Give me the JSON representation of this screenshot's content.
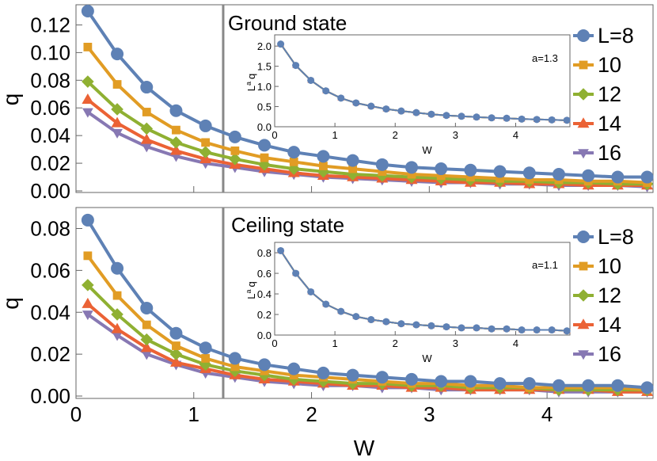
{
  "chart_data": [
    {
      "type": "line",
      "title": "Ground state",
      "xlabel": "",
      "ylabel": "q",
      "xlim": [
        0,
        4.9
      ],
      "ylim": [
        0,
        0.13
      ],
      "yticks": [
        {
          "v": 0.0,
          "label": "0.00"
        },
        {
          "v": 0.02,
          "label": "0.02"
        },
        {
          "v": 0.04,
          "label": "0.04"
        },
        {
          "v": 0.06,
          "label": "0.06"
        },
        {
          "v": 0.08,
          "label": "0.08"
        },
        {
          "v": 0.1,
          "label": "0.10"
        },
        {
          "v": 0.12,
          "label": "0.12"
        }
      ],
      "vline_x": 1.25,
      "x": [
        0.1,
        0.35,
        0.6,
        0.85,
        1.1,
        1.35,
        1.6,
        1.85,
        2.1,
        2.35,
        2.6,
        2.85,
        3.1,
        3.35,
        3.6,
        3.85,
        4.1,
        4.35,
        4.6,
        4.85
      ],
      "series": [
        {
          "name": "L=8",
          "color": "#5E81B5",
          "marker": "circle",
          "values": [
            0.13,
            0.099,
            0.075,
            0.058,
            0.047,
            0.039,
            0.033,
            0.028,
            0.025,
            0.022,
            0.019,
            0.017,
            0.016,
            0.015,
            0.014,
            0.013,
            0.012,
            0.011,
            0.01,
            0.01
          ]
        },
        {
          "name": "10",
          "color": "#E19C24",
          "marker": "square",
          "values": [
            0.104,
            0.077,
            0.057,
            0.044,
            0.035,
            0.029,
            0.024,
            0.021,
            0.018,
            0.016,
            0.014,
            0.012,
            0.011,
            0.01,
            0.009,
            0.008,
            0.008,
            0.007,
            0.007,
            0.006
          ]
        },
        {
          "name": "12",
          "color": "#8FB032",
          "marker": "diamond",
          "values": [
            0.079,
            0.059,
            0.045,
            0.035,
            0.028,
            0.023,
            0.019,
            0.016,
            0.014,
            0.012,
            0.011,
            0.01,
            0.009,
            0.008,
            0.007,
            0.007,
            0.006,
            0.006,
            0.005,
            0.005
          ]
        },
        {
          "name": "14",
          "color": "#EB6235",
          "marker": "triangle-up",
          "values": [
            0.066,
            0.049,
            0.037,
            0.029,
            0.023,
            0.019,
            0.016,
            0.013,
            0.011,
            0.01,
            0.009,
            0.008,
            0.007,
            0.006,
            0.006,
            0.005,
            0.005,
            0.004,
            0.004,
            0.004
          ]
        },
        {
          "name": "16",
          "color": "#8778B3",
          "marker": "triangle-down",
          "values": [
            0.057,
            0.042,
            0.032,
            0.025,
            0.02,
            0.017,
            0.014,
            0.012,
            0.01,
            0.009,
            0.008,
            0.007,
            0.006,
            0.006,
            0.005,
            0.005,
            0.004,
            0.004,
            0.004,
            0.003
          ]
        }
      ],
      "inset": {
        "annotation": "a=1.3",
        "xlabel": "W",
        "ylabel_base": "L",
        "ylabel_sup": "a",
        "ylabel_tail": "q",
        "xlim": [
          0,
          4.9
        ],
        "ylim": [
          0,
          2.2
        ],
        "xticks": [
          {
            "v": 0,
            "label": "0"
          },
          {
            "v": 1,
            "label": "1"
          },
          {
            "v": 2,
            "label": "2"
          },
          {
            "v": 3,
            "label": "3"
          },
          {
            "v": 4,
            "label": "4"
          }
        ],
        "yticks": [
          {
            "v": 0,
            "label": "0.0"
          },
          {
            "v": 0.5,
            "label": "0.5"
          },
          {
            "v": 1.0,
            "label": "1.0"
          },
          {
            "v": 1.5,
            "label": "1.5"
          },
          {
            "v": 2.0,
            "label": "2.0"
          }
        ],
        "values": [
          2.05,
          1.52,
          1.15,
          0.89,
          0.71,
          0.59,
          0.51,
          0.44,
          0.39,
          0.35,
          0.31,
          0.28,
          0.26,
          0.24,
          0.22,
          0.21,
          0.19,
          0.18,
          0.17,
          0.16
        ]
      }
    },
    {
      "type": "line",
      "title": "Ceiling state",
      "xlabel": "W",
      "ylabel": "q",
      "xlim": [
        0,
        4.9
      ],
      "ylim": [
        0,
        0.087
      ],
      "xticks": [
        {
          "v": 0,
          "label": "0"
        },
        {
          "v": 1,
          "label": "1"
        },
        {
          "v": 2,
          "label": "2"
        },
        {
          "v": 3,
          "label": "3"
        },
        {
          "v": 4,
          "label": "4"
        }
      ],
      "yticks": [
        {
          "v": 0.0,
          "label": "0.00"
        },
        {
          "v": 0.02,
          "label": "0.02"
        },
        {
          "v": 0.04,
          "label": "0.04"
        },
        {
          "v": 0.06,
          "label": "0.06"
        },
        {
          "v": 0.08,
          "label": "0.08"
        }
      ],
      "vline_x": 1.25,
      "x": [
        0.1,
        0.35,
        0.6,
        0.85,
        1.1,
        1.35,
        1.6,
        1.85,
        2.1,
        2.35,
        2.6,
        2.85,
        3.1,
        3.35,
        3.6,
        3.85,
        4.1,
        4.35,
        4.6,
        4.85
      ],
      "series": [
        {
          "name": "L=8",
          "color": "#5E81B5",
          "marker": "circle",
          "values": [
            0.084,
            0.061,
            0.042,
            0.03,
            0.023,
            0.018,
            0.015,
            0.013,
            0.011,
            0.01,
            0.009,
            0.008,
            0.007,
            0.007,
            0.006,
            0.006,
            0.005,
            0.005,
            0.005,
            0.004
          ]
        },
        {
          "name": "10",
          "color": "#E19C24",
          "marker": "square",
          "values": [
            0.067,
            0.048,
            0.034,
            0.024,
            0.018,
            0.014,
            0.012,
            0.01,
            0.009,
            0.008,
            0.007,
            0.006,
            0.006,
            0.005,
            0.005,
            0.004,
            0.004,
            0.004,
            0.004,
            0.003
          ]
        },
        {
          "name": "12",
          "color": "#8FB032",
          "marker": "diamond",
          "values": [
            0.053,
            0.039,
            0.027,
            0.02,
            0.015,
            0.012,
            0.01,
            0.008,
            0.007,
            0.006,
            0.006,
            0.005,
            0.005,
            0.004,
            0.004,
            0.004,
            0.003,
            0.003,
            0.003,
            0.003
          ]
        },
        {
          "name": "14",
          "color": "#EB6235",
          "marker": "triangle-up",
          "values": [
            0.044,
            0.032,
            0.023,
            0.016,
            0.013,
            0.01,
            0.008,
            0.007,
            0.006,
            0.005,
            0.005,
            0.004,
            0.004,
            0.003,
            0.003,
            0.003,
            0.003,
            0.003,
            0.002,
            0.002
          ]
        },
        {
          "name": "16",
          "color": "#8778B3",
          "marker": "triangle-down",
          "values": [
            0.039,
            0.029,
            0.02,
            0.015,
            0.011,
            0.009,
            0.007,
            0.006,
            0.005,
            0.005,
            0.004,
            0.004,
            0.003,
            0.003,
            0.003,
            0.003,
            0.002,
            0.002,
            0.002,
            0.002
          ]
        }
      ],
      "inset": {
        "annotation": "a=1.1",
        "xlabel": "W",
        "ylabel_base": "L",
        "ylabel_sup": "a",
        "ylabel_tail": "q",
        "xlim": [
          0,
          4.9
        ],
        "ylim": [
          0,
          0.87
        ],
        "xticks": [
          {
            "v": 0,
            "label": "0"
          },
          {
            "v": 1,
            "label": "1"
          },
          {
            "v": 2,
            "label": "2"
          },
          {
            "v": 3,
            "label": "3"
          },
          {
            "v": 4,
            "label": "4"
          }
        ],
        "yticks": [
          {
            "v": 0,
            "label": "0.0"
          },
          {
            "v": 0.2,
            "label": "0.2"
          },
          {
            "v": 0.4,
            "label": "0.4"
          },
          {
            "v": 0.6,
            "label": "0.6"
          },
          {
            "v": 0.8,
            "label": "0.8"
          }
        ],
        "values": [
          0.82,
          0.6,
          0.42,
          0.3,
          0.23,
          0.18,
          0.15,
          0.13,
          0.11,
          0.1,
          0.09,
          0.08,
          0.07,
          0.07,
          0.06,
          0.06,
          0.05,
          0.05,
          0.05,
          0.04
        ]
      }
    }
  ]
}
